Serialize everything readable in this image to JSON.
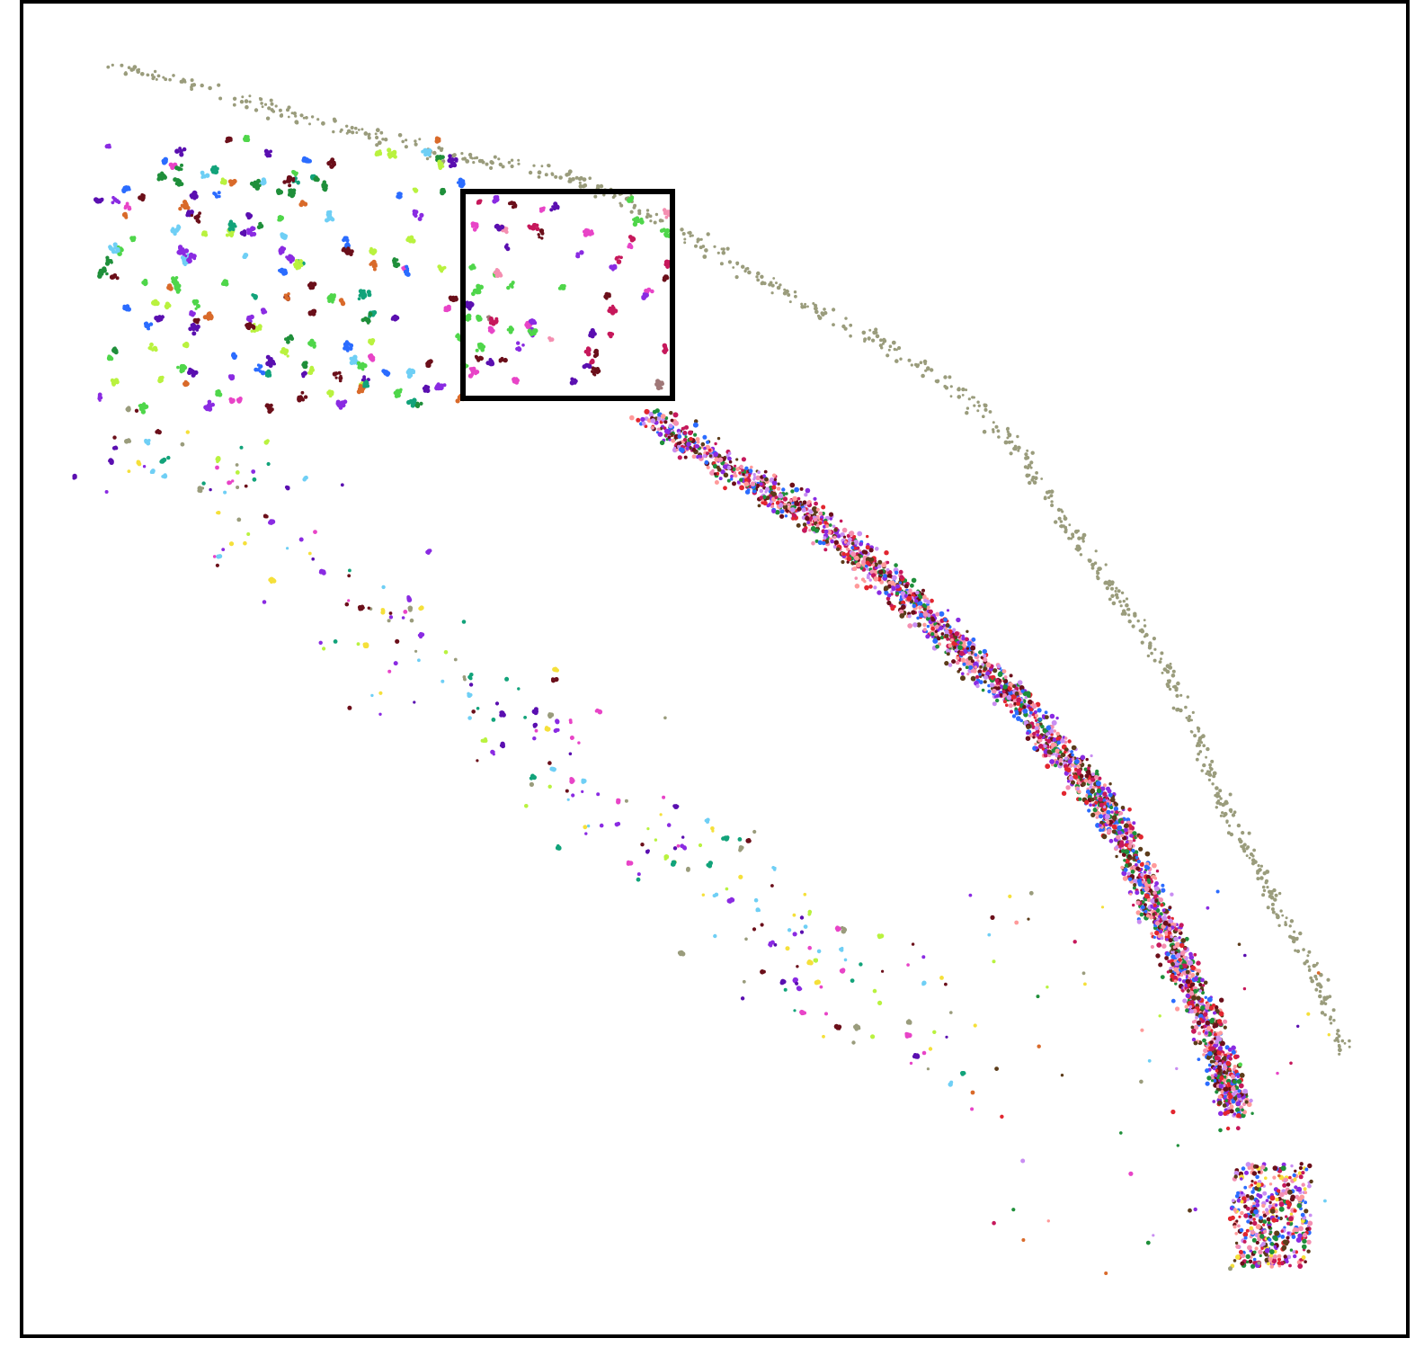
{
  "image": {
    "kind": "spatial scatter of colored cell clusters",
    "background": "#ffffff",
    "frame_color": "#000000",
    "has_region_highlight": true
  },
  "palette": [
    "#9a9c7c",
    "#6fcff5",
    "#8a2be2",
    "#4fd64a",
    "#b9f23f",
    "#c6185b",
    "#c98ef2",
    "#1f8f3a",
    "#6b0f1a",
    "#e2262f",
    "#2b6cff",
    "#e844c7",
    "#f5e03a",
    "#5a0fb0",
    "#12a37a",
    "#d96a2a",
    "#a07878",
    "#f48fb1",
    "#5c3c1a",
    "#ff9a9a"
  ]
}
